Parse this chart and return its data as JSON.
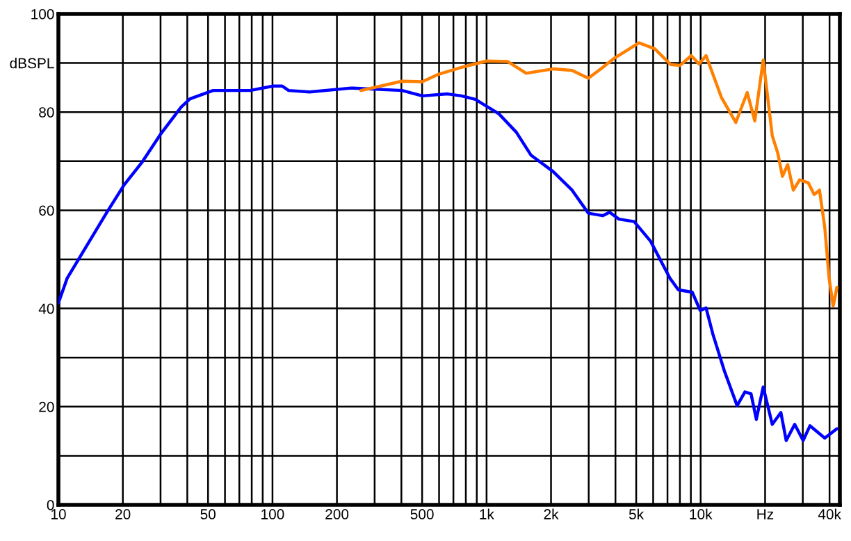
{
  "chart_data": {
    "type": "line",
    "log": "x",
    "grid": true,
    "legend": false,
    "marker": "none",
    "line_style": "solid",
    "xlim": [
      10,
      44700
    ],
    "ylim": [
      0,
      100
    ],
    "xticks": [
      10,
      20,
      {
        "value": 30,
        "label": null
      },
      {
        "value": 40,
        "label": null
      },
      50,
      {
        "value": 60,
        "label": null
      },
      {
        "value": 70,
        "label": null
      },
      {
        "value": 80,
        "label": null
      },
      {
        "value": 90,
        "label": null
      },
      100,
      200,
      {
        "value": 300,
        "label": null
      },
      {
        "value": 400,
        "label": null
      },
      500,
      {
        "value": 600,
        "label": null
      },
      {
        "value": 700,
        "label": null
      },
      {
        "value": 800,
        "label": null
      },
      {
        "value": 900,
        "label": null
      },
      {
        "value": 1000,
        "label": "1k"
      },
      {
        "value": 2000,
        "label": "2k"
      },
      {
        "value": 3000,
        "label": null
      },
      {
        "value": 4000,
        "label": null
      },
      {
        "value": 5000,
        "label": "5k"
      },
      {
        "value": 6000,
        "label": null
      },
      {
        "value": 7000,
        "label": null
      },
      {
        "value": 8000,
        "label": null
      },
      {
        "value": 9000,
        "label": null
      },
      {
        "value": 10000,
        "label": "10k"
      },
      {
        "value": 20000,
        "label": "Hz"
      },
      {
        "value": 30000,
        "label": null
      },
      {
        "value": 40000,
        "label": "40k"
      }
    ],
    "yticks": [
      0,
      {
        "value": 10,
        "label": null
      },
      20,
      {
        "value": 30,
        "label": null
      },
      40,
      {
        "value": 50,
        "label": null
      },
      60,
      {
        "value": 70,
        "label": null
      },
      80,
      {
        "value": 90,
        "label": "dBSPL"
      },
      100
    ],
    "series": [
      {
        "color": "#0000ff",
        "x": [
          10,
          11,
          16.8,
          20.3,
          24.5,
          29.9,
          37.4,
          41.2,
          52.8,
          78.6,
          100.6,
          111,
          119,
          149,
          233,
          403,
          501,
          658,
          763,
          886,
          1138,
          1377,
          1614,
          2044,
          2508,
          2989,
          3486,
          3755,
          4154,
          4889,
          5835,
          7177,
          7866,
          9141,
          9948,
          10600,
          11400,
          12900,
          14800,
          16100,
          17200,
          18200,
          19600,
          21600,
          23700,
          25100,
          27500,
          30100,
          32400,
          38000,
          43300
        ],
        "values": [
          41.1,
          46.2,
          59.5,
          65.2,
          69.7,
          75.4,
          81.0,
          82.7,
          84.4,
          84.4,
          85.3,
          85.3,
          84.4,
          84.1,
          84.9,
          84.4,
          83.3,
          83.7,
          83.3,
          82.6,
          79.7,
          75.9,
          71.2,
          67.9,
          64.1,
          59.4,
          58.9,
          59.6,
          58.2,
          57.7,
          53.7,
          46.2,
          43.8,
          43.3,
          39.6,
          40.1,
          34.8,
          27.3,
          20.2,
          23.0,
          22.6,
          17.4,
          24.0,
          16.4,
          18.8,
          13.1,
          16.4,
          13.1,
          16.1,
          13.6,
          15.5
        ]
      },
      {
        "color": "#ff8000",
        "x": [
          259,
          403,
          501,
          596,
          763,
          1000,
          1253,
          1532,
          2044,
          2508,
          2989,
          3486,
          3956,
          5150,
          6101,
          7239,
          8007,
          9040,
          9824,
          10600,
          12500,
          14600,
          16500,
          17900,
          19600,
          21600,
          22900,
          24100,
          25500,
          27100,
          29000,
          31800,
          33900,
          35900,
          38000,
          39800,
          41600,
          43300
        ],
        "values": [
          84.4,
          86.3,
          86.2,
          87.7,
          89.1,
          90.4,
          90.3,
          87.9,
          88.8,
          88.5,
          86.9,
          89.1,
          91.0,
          94.1,
          92.9,
          89.7,
          89.5,
          91.5,
          89.8,
          91.5,
          83.0,
          77.9,
          84.0,
          78.2,
          90.6,
          75.2,
          71.7,
          66.9,
          69.3,
          64.1,
          66.2,
          65.6,
          63.2,
          64.1,
          56.5,
          46.2,
          40.5,
          44.3
        ]
      }
    ]
  }
}
